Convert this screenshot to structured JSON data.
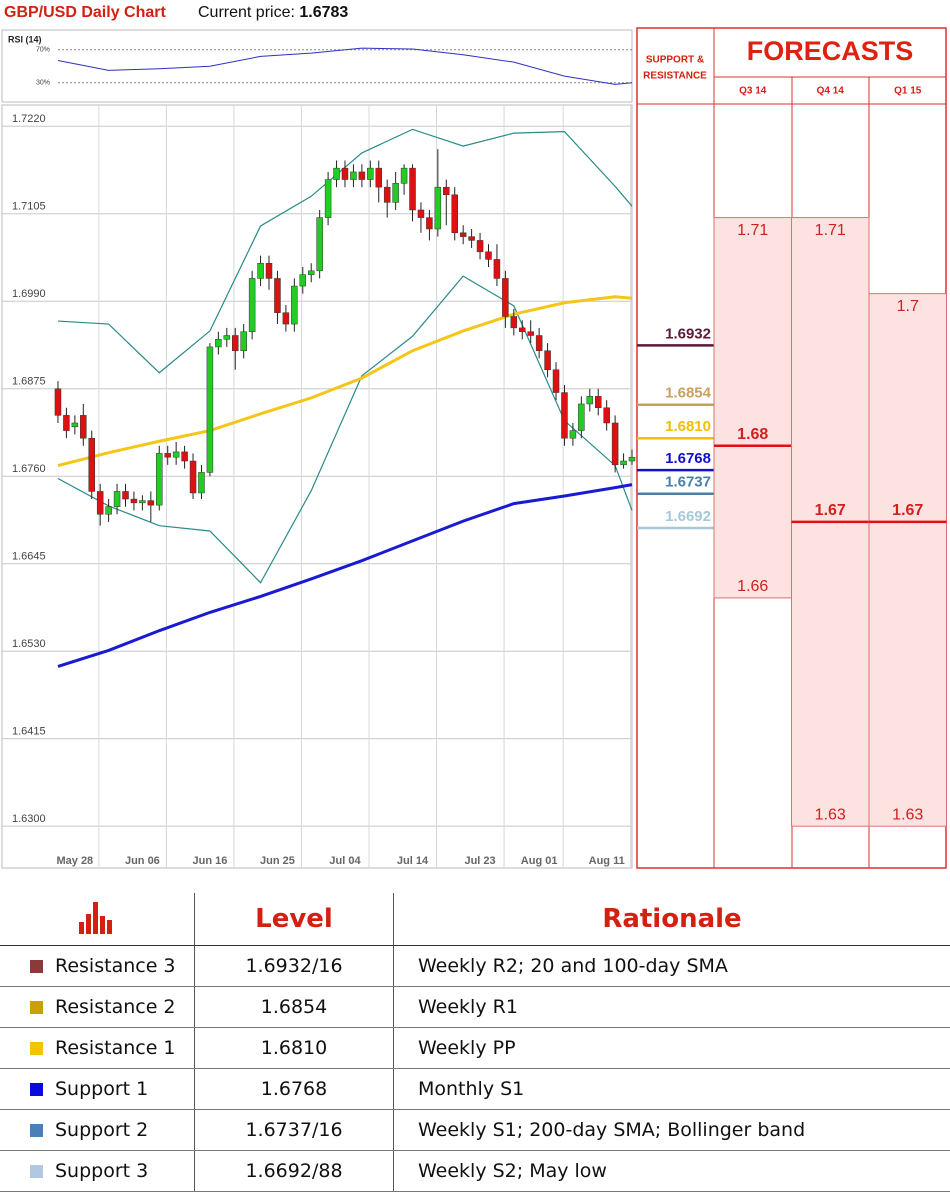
{
  "header": {
    "title": "GBP/USD Daily Chart",
    "price_label": "Current price:",
    "price": "1.6783"
  },
  "chart_data": [
    {
      "type": "candlestick",
      "categories": [
        null,
        null,
        "May 28",
        null,
        null,
        null,
        null,
        null,
        null,
        null,
        "Jun 06",
        null,
        null,
        null,
        null,
        null,
        null,
        null,
        "Jun 16",
        null,
        null,
        null,
        null,
        null,
        null,
        null,
        "Jun 25",
        null,
        null,
        null,
        null,
        null,
        null,
        null,
        "Jul 04",
        null,
        null,
        null,
        null,
        null,
        null,
        null,
        "Jul 14",
        null,
        null,
        null,
        null,
        null,
        null,
        null,
        "Jul 23",
        null,
        null,
        null,
        null,
        null,
        null,
        "Aug 01",
        null,
        null,
        null,
        null,
        null,
        null,
        null,
        "Aug 11",
        null,
        null,
        null
      ],
      "open": [
        1.6875,
        1.684,
        1.6825,
        1.684,
        1.681,
        1.674,
        1.671,
        1.672,
        1.674,
        1.673,
        1.6725,
        1.6728,
        1.6722,
        1.679,
        1.6785,
        1.6792,
        1.678,
        1.6738,
        1.6765,
        1.693,
        1.694,
        1.6945,
        1.6925,
        1.695,
        1.702,
        1.704,
        1.702,
        1.6975,
        1.696,
        1.701,
        1.7025,
        1.703,
        1.71,
        1.715,
        1.7165,
        1.715,
        1.716,
        1.715,
        1.7165,
        1.714,
        1.712,
        1.7145,
        1.7165,
        1.711,
        1.71,
        1.7085,
        1.714,
        1.713,
        1.708,
        1.7075,
        1.707,
        1.7055,
        1.7045,
        1.702,
        1.697,
        1.6955,
        1.695,
        1.6945,
        1.6925,
        1.69,
        1.687,
        1.681,
        1.682,
        1.6855,
        1.6865,
        1.685,
        1.683,
        1.6775,
        1.678
      ],
      "high": [
        1.6885,
        1.685,
        1.684,
        1.6855,
        1.682,
        1.675,
        1.673,
        1.675,
        1.675,
        1.674,
        1.6735,
        1.674,
        1.68,
        1.68,
        1.6805,
        1.68,
        1.679,
        1.6775,
        1.6935,
        1.695,
        1.6955,
        1.6955,
        1.696,
        1.703,
        1.705,
        1.705,
        1.703,
        1.6985,
        1.702,
        1.7035,
        1.704,
        1.711,
        1.716,
        1.7175,
        1.7175,
        1.717,
        1.717,
        1.7175,
        1.7175,
        1.715,
        1.716,
        1.717,
        1.717,
        1.712,
        1.711,
        1.719,
        1.715,
        1.714,
        1.709,
        1.7085,
        1.708,
        1.7065,
        1.7065,
        1.703,
        1.698,
        1.6965,
        1.6965,
        1.6955,
        1.6935,
        1.691,
        1.688,
        1.683,
        1.6865,
        1.6875,
        1.6875,
        1.686,
        1.684,
        1.679,
        1.6795
      ],
      "low": [
        1.683,
        1.681,
        1.6815,
        1.68,
        1.673,
        1.6695,
        1.67,
        1.671,
        1.672,
        1.6715,
        1.6715,
        1.67,
        1.6715,
        1.6775,
        1.6775,
        1.677,
        1.673,
        1.673,
        1.676,
        1.692,
        1.693,
        1.69,
        1.6915,
        1.694,
        1.701,
        1.7005,
        1.696,
        1.695,
        1.695,
        1.7,
        1.7015,
        1.702,
        1.709,
        1.714,
        1.714,
        1.714,
        1.714,
        1.714,
        1.712,
        1.71,
        1.711,
        1.713,
        1.7095,
        1.708,
        1.707,
        1.7075,
        1.709,
        1.707,
        1.7065,
        1.706,
        1.7045,
        1.7035,
        1.701,
        1.6955,
        1.6945,
        1.694,
        1.6935,
        1.6915,
        1.689,
        1.686,
        1.68,
        1.68,
        1.681,
        1.6845,
        1.684,
        1.682,
        1.6765,
        1.677,
        1.6775
      ],
      "close": [
        1.684,
        1.682,
        1.683,
        1.681,
        1.674,
        1.671,
        1.672,
        1.674,
        1.673,
        1.6725,
        1.6728,
        1.6722,
        1.679,
        1.6785,
        1.6792,
        1.678,
        1.6738,
        1.6765,
        1.693,
        1.694,
        1.6945,
        1.6925,
        1.695,
        1.702,
        1.704,
        1.702,
        1.6975,
        1.696,
        1.701,
        1.7025,
        1.703,
        1.71,
        1.715,
        1.7165,
        1.715,
        1.716,
        1.715,
        1.7165,
        1.714,
        1.712,
        1.7145,
        1.7165,
        1.711,
        1.71,
        1.7085,
        1.714,
        1.713,
        1.708,
        1.7075,
        1.707,
        1.7055,
        1.7045,
        1.702,
        1.697,
        1.6955,
        1.695,
        1.6945,
        1.6925,
        1.69,
        1.687,
        1.681,
        1.682,
        1.6855,
        1.6865,
        1.685,
        1.683,
        1.6775,
        1.678,
        1.6785
      ],
      "up_color": "#22cc22",
      "down_color": "#dd1111",
      "series": [
        {
          "color": "#2a8a8a",
          "x": [
            0,
            6,
            12,
            18,
            24,
            30,
            36,
            42,
            48,
            54,
            60,
            66,
            68
          ],
          "values": [
            1.6964,
            1.696,
            1.6896,
            1.6951,
            1.7089,
            1.7128,
            1.7185,
            1.7216,
            1.7194,
            1.7211,
            1.7213,
            1.7141,
            1.7115
          ]
        },
        {
          "color": "#2a8a8a",
          "x": [
            0,
            6,
            12,
            18,
            24,
            30,
            36,
            42,
            48,
            54,
            60,
            66,
            68
          ],
          "values": [
            1.6757,
            1.6721,
            1.6695,
            1.6688,
            1.662,
            1.6741,
            1.6892,
            1.6944,
            1.7023,
            1.6984,
            1.6833,
            1.6774,
            1.6715
          ]
        },
        {
          "color": "#f5c518",
          "x": [
            0,
            6,
            12,
            18,
            24,
            30,
            36,
            42,
            48,
            54,
            60,
            66,
            68
          ],
          "values": [
            1.6774,
            1.6791,
            1.6806,
            1.682,
            1.6842,
            1.6863,
            1.6889,
            1.6925,
            1.6951,
            1.6973,
            1.6988,
            1.6996,
            1.6994
          ]
        },
        {
          "color": "#1a1ad0",
          "x": [
            0,
            6,
            12,
            18,
            24,
            30,
            36,
            42,
            48,
            54,
            60,
            66,
            68
          ],
          "values": [
            1.651,
            1.6531,
            1.6557,
            1.6581,
            1.6602,
            1.6625,
            1.6649,
            1.6675,
            1.6701,
            1.6724,
            1.6734,
            1.6745,
            1.6749
          ]
        }
      ],
      "xlim": [
        -6.63,
        68
      ],
      "ylim": [
        1.6245,
        1.7248
      ],
      "yticks": [
        {
          "value": 1.722,
          "label": "1.7220"
        },
        {
          "value": 1.7105,
          "label": "1.7105"
        },
        {
          "value": 1.699,
          "label": "1.6990"
        },
        {
          "value": 1.6875,
          "label": "1.6875"
        },
        {
          "value": 1.676,
          "label": "1.6760"
        },
        {
          "value": 1.6645,
          "label": "1.6645"
        },
        {
          "value": 1.653,
          "label": "1.6530"
        },
        {
          "value": 1.6415,
          "label": "1.6415"
        },
        {
          "value": 1.63,
          "label": "1.6300"
        }
      ],
      "grid": true
    },
    {
      "type": "line",
      "title": "RSI (14)",
      "color": "#3030c0",
      "x": [
        0,
        6,
        12,
        18,
        24,
        30,
        36,
        42,
        48,
        54,
        60,
        66,
        68
      ],
      "values": [
        57,
        45,
        47,
        50,
        62,
        66,
        72,
        71,
        64,
        55,
        38,
        28,
        30
      ],
      "xlim": [
        -6.63,
        68
      ],
      "ylim": [
        9,
        88
      ],
      "yticks": [
        {
          "value": 70,
          "label": "70%"
        },
        {
          "value": 30,
          "label": "30%"
        }
      ],
      "grid": true
    }
  ],
  "support_resistance": {
    "title_lines": [
      "SUPPORT &",
      "RESISTANCE"
    ],
    "levels": [
      {
        "value": 1.6932,
        "label": "1.6932",
        "color": "#5a1a3a"
      },
      {
        "value": 1.6854,
        "label": "1.6854",
        "color": "#c8a060"
      },
      {
        "value": 1.681,
        "label": "1.6810",
        "color": "#f0c000"
      },
      {
        "value": 1.6768,
        "label": "1.6768",
        "color": "#1010cc"
      },
      {
        "value": 1.6737,
        "label": "1.6737",
        "color": "#4a80a8"
      },
      {
        "value": 1.6692,
        "label": "1.6692",
        "color": "#a8c8d8"
      }
    ]
  },
  "forecasts": {
    "title": "FORECASTS",
    "columns": [
      {
        "label": "Q3 14",
        "high": 1.71,
        "mid": 1.68,
        "low": 1.66
      },
      {
        "label": "Q4 14",
        "high": 1.71,
        "mid": 1.67,
        "low": 1.63
      },
      {
        "label": "Q1 15",
        "high": 1.7,
        "mid": 1.67,
        "low": 1.63
      }
    ]
  },
  "table": {
    "headers": [
      "Level",
      "Rationale"
    ],
    "rows": [
      {
        "color": "#8b3a3a",
        "name": "Resistance 3",
        "level": "1.6932/16",
        "rationale": "Weekly R2; 20 and 100-day SMA"
      },
      {
        "color": "#c8a000",
        "name": "Resistance 2",
        "level": "1.6854",
        "rationale": "Weekly R1"
      },
      {
        "color": "#f5c400",
        "name": "Resistance 1",
        "level": "1.6810",
        "rationale": "Weekly PP"
      },
      {
        "color": "#0a0ae0",
        "name": "Support 1",
        "level": "1.6768",
        "rationale": "Monthly S1"
      },
      {
        "color": "#4a7fb8",
        "name": "Support 2",
        "level": "1.6737/16",
        "rationale": "Weekly S1; 200-day SMA; Bollinger band"
      },
      {
        "color": "#b0c8e0",
        "name": "Support 3",
        "level": "1.6692/88",
        "rationale": "Weekly S2; May low"
      }
    ]
  }
}
